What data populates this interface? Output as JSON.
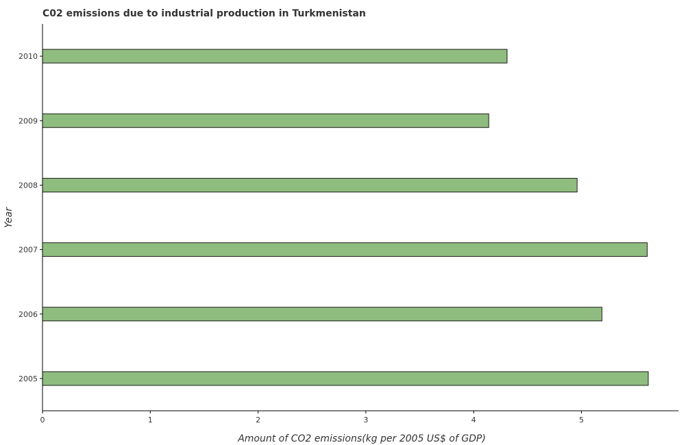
{
  "chart_data": {
    "type": "bar",
    "orientation": "horizontal",
    "title": "C02 emissions due to industrial production in Turkmenistan",
    "xlabel": "Amount of CO2 emissions(kg per 2005 US$ of GDP)",
    "ylabel": "Year",
    "categories": [
      "2005",
      "2006",
      "2007",
      "2008",
      "2009",
      "2010"
    ],
    "values": [
      5.62,
      5.19,
      5.61,
      4.96,
      4.14,
      4.31
    ],
    "xlim": [
      0,
      5.9
    ],
    "xticks": [
      "0",
      "1",
      "2",
      "3",
      "4",
      "5"
    ],
    "grid": false,
    "legend": "none",
    "bar_color": "#8fbc7f",
    "bar_edge_color": "#1a1a1a"
  }
}
